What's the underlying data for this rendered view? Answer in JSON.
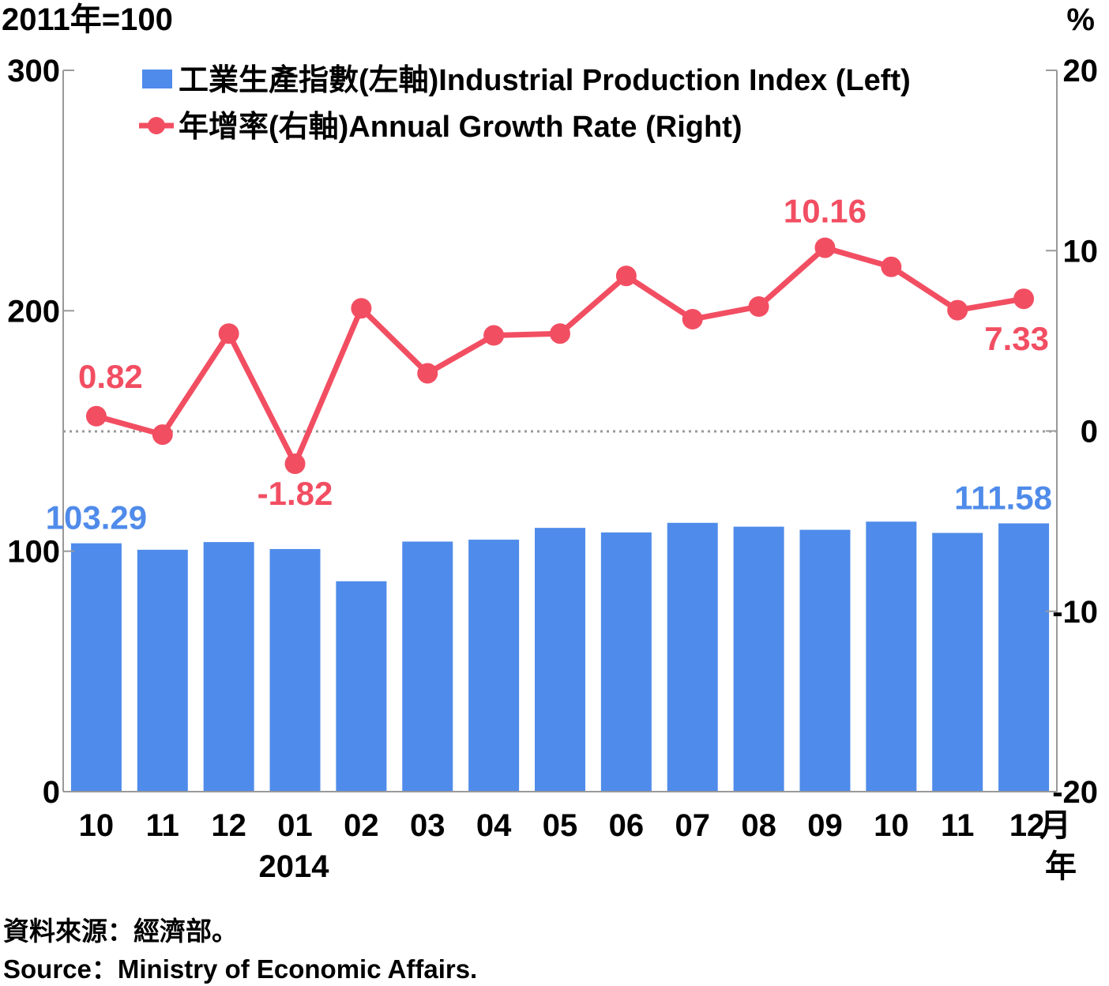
{
  "chart_data": {
    "type": "bar",
    "left_axis_title": "2011年=100",
    "right_axis_title": "%",
    "left_ylim": [
      0,
      300
    ],
    "left_ticks": [
      "0",
      "100",
      "200",
      "300"
    ],
    "right_ylim": [
      -20,
      20
    ],
    "right_ticks": [
      "-20",
      "-10",
      "0",
      "10",
      "20"
    ],
    "categories": [
      "10",
      "11",
      "12",
      "01",
      "02",
      "03",
      "04",
      "05",
      "06",
      "07",
      "08",
      "09",
      "10",
      "11",
      "12"
    ],
    "month_unit": "月",
    "year_label": "2014",
    "year_unit": "年",
    "series": [
      {
        "name": "工業生產指數(左軸)Industrial Production Index (Left)",
        "type": "bar",
        "axis": "left",
        "color": "#4f8bea",
        "values": [
          103.29,
          100.6,
          103.8,
          100.9,
          87.5,
          104.0,
          104.8,
          109.7,
          107.8,
          111.8,
          110.2,
          108.9,
          112.3,
          107.6,
          111.58
        ]
      },
      {
        "name": "年增率(右軸)Annual Growth Rate (Right)",
        "type": "line",
        "axis": "right",
        "color": "#f24e62",
        "values": [
          0.82,
          -0.2,
          5.4,
          -1.82,
          6.8,
          3.2,
          5.3,
          5.4,
          8.6,
          6.2,
          6.9,
          10.16,
          9.1,
          6.7,
          7.33
        ]
      }
    ],
    "data_labels": [
      {
        "series": 0,
        "index": 0,
        "text": "103.29"
      },
      {
        "series": 0,
        "index": 14,
        "text": "111.58"
      },
      {
        "series": 1,
        "index": 0,
        "text": "0.82"
      },
      {
        "series": 1,
        "index": 3,
        "text": "-1.82"
      },
      {
        "series": 1,
        "index": 11,
        "text": "10.16"
      },
      {
        "series": 1,
        "index": 14,
        "text": "7.33"
      }
    ],
    "legend_position": "top-left",
    "zero_reference_line": "dotted"
  },
  "source": {
    "zh": "資料來源：經濟部。",
    "en": "Source：Ministry of Economic Affairs."
  }
}
